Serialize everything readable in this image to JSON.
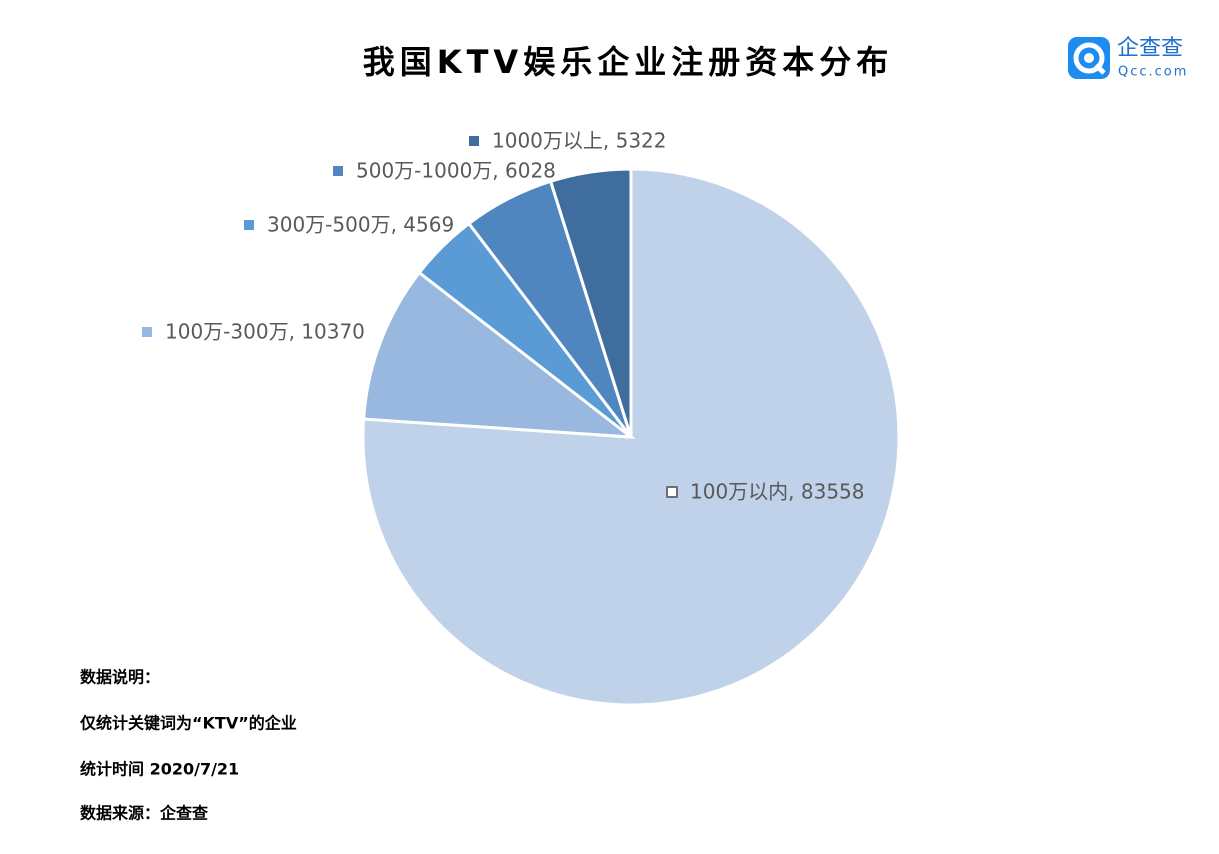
{
  "chart_data": {
    "type": "pie",
    "title": "我国KTV娱乐企业注册资本分布",
    "categories": [
      "100万以内",
      "100万-300万",
      "300万-500万",
      "500万-1000万",
      "1000万以上"
    ],
    "values": [
      83558,
      10370,
      4569,
      6028,
      5322
    ],
    "labels": [
      "100万以内, 83558",
      "100万-300万, 10370",
      "300万-500万, 4569",
      "500万-1000万, 6028",
      "1000万以上, 5322"
    ],
    "colors": [
      "#c0d2ea",
      "#98b8e0",
      "#5b9bd5",
      "#4f86c0",
      "#3f6d9e"
    ]
  },
  "notes": [
    "数据说明：",
    "仅统计关键词为“KTV”的企业",
    "统计时间 2020/7/21",
    "数据来源：企查查"
  ],
  "logo": {
    "name": "企查查",
    "domain": "Qcc.com"
  }
}
